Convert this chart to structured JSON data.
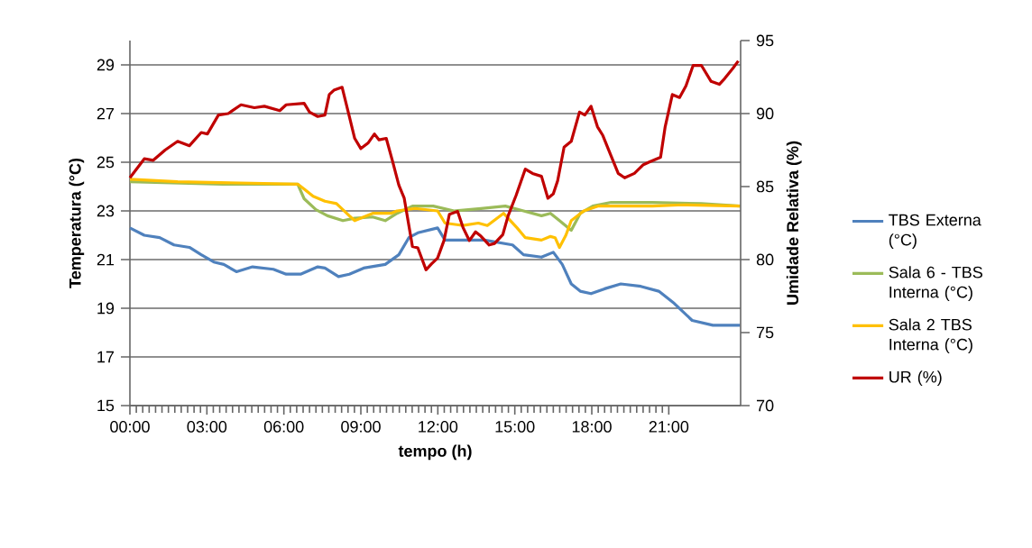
{
  "chart_data": {
    "type": "line",
    "xlabel": "tempo (h)",
    "ylabel": "Temperatura (°C)",
    "y2label": "Umidade Relativa (%)",
    "xlim": [
      0,
      23.8
    ],
    "xticks": [
      {
        "value": 0,
        "label": "00:00"
      },
      {
        "value": 3,
        "label": "03:00"
      },
      {
        "value": 6,
        "label": "06:00"
      },
      {
        "value": 9,
        "label": "09:00"
      },
      {
        "value": 12,
        "label": "12:00"
      },
      {
        "value": 15,
        "label": "15:00"
      },
      {
        "value": 18,
        "label": "18:00"
      },
      {
        "value": 21,
        "label": "21:00"
      }
    ],
    "ylim": [
      15,
      30
    ],
    "yticks": [
      15,
      17,
      19,
      21,
      23,
      25,
      27,
      29
    ],
    "y2lim": [
      70,
      95
    ],
    "y2ticks": [
      70,
      75,
      80,
      85,
      90,
      95
    ],
    "grid": "y",
    "legend": "right",
    "series": [
      {
        "name": "TBS Externa (°C)",
        "color": "#4f81bd",
        "axis": "y",
        "x": [
          0,
          0.56,
          1.16,
          1.72,
          2.32,
          2.78,
          3.27,
          3.66,
          4.15,
          4.78,
          5.59,
          6.09,
          6.65,
          7.32,
          7.6,
          8.13,
          8.55,
          9.11,
          9.95,
          10.48,
          10.87,
          11.22,
          11.99,
          12.28,
          13.33,
          13.82,
          14.91,
          15.34,
          16.04,
          16.5,
          16.85,
          17.2,
          17.55,
          17.97,
          18.5,
          19.13,
          19.91,
          20.61,
          21.21,
          21.91,
          22.72,
          23.78
        ],
        "values": [
          22.3,
          22.0,
          21.9,
          21.6,
          21.5,
          21.2,
          20.9,
          20.8,
          20.5,
          20.7,
          20.6,
          20.4,
          20.4,
          20.7,
          20.65,
          20.3,
          20.4,
          20.65,
          20.8,
          21.2,
          21.9,
          22.1,
          22.3,
          21.8,
          21.8,
          21.8,
          21.6,
          21.2,
          21.1,
          21.3,
          20.8,
          20.0,
          19.7,
          19.6,
          19.8,
          20.0,
          19.9,
          19.7,
          19.2,
          18.5,
          18.3,
          18.3
        ]
      },
      {
        "name": "Sala 6 - TBS Interna (°C)",
        "color": "#9bbb59",
        "axis": "y",
        "x": [
          0,
          3.62,
          6.54,
          6.79,
          7.25,
          7.7,
          8.3,
          8.76,
          9.46,
          9.95,
          10.41,
          11.01,
          11.82,
          12.63,
          13.68,
          14.63,
          15.34,
          16.04,
          16.39,
          16.74,
          17.2,
          17.55,
          18.04,
          18.75,
          20.37,
          22.27,
          23.78
        ],
        "values": [
          24.2,
          24.1,
          24.1,
          23.5,
          23.05,
          22.8,
          22.6,
          22.7,
          22.75,
          22.6,
          22.9,
          23.2,
          23.2,
          23.0,
          23.1,
          23.2,
          23.0,
          22.8,
          22.9,
          22.6,
          22.2,
          22.9,
          23.2,
          23.35,
          23.35,
          23.3,
          23.2
        ]
      },
      {
        "name": "Sala 2 TBS Interna (°C)",
        "color": "#ffc000",
        "axis": "y",
        "x": [
          0,
          1.86,
          6.54,
          6.79,
          7.14,
          7.6,
          8.05,
          8.55,
          8.76,
          9.46,
          10.17,
          10.41,
          11.12,
          11.99,
          12.28,
          12.98,
          13.58,
          13.93,
          14.56,
          15.09,
          15.41,
          16.04,
          16.39,
          16.57,
          16.74,
          16.99,
          17.2,
          17.69,
          18.26,
          20.37,
          21.56,
          23.78
        ],
        "values": [
          24.3,
          24.2,
          24.1,
          23.9,
          23.6,
          23.4,
          23.3,
          22.8,
          22.6,
          22.9,
          22.9,
          23.0,
          23.1,
          23.0,
          22.5,
          22.4,
          22.5,
          22.4,
          22.9,
          22.3,
          21.9,
          21.8,
          21.95,
          21.9,
          21.5,
          22.0,
          22.6,
          23.0,
          23.2,
          23.2,
          23.25,
          23.2
        ]
      },
      {
        "name": "UR (%)",
        "color": "#c00000",
        "axis": "y2",
        "x": [
          0,
          0.56,
          0.91,
          1.37,
          1.86,
          2.32,
          2.78,
          3.02,
          3.45,
          3.83,
          4.33,
          4.85,
          5.24,
          5.84,
          6.09,
          6.79,
          7.0,
          7.32,
          7.6,
          7.77,
          7.95,
          8.27,
          8.55,
          8.76,
          9.0,
          9.29,
          9.53,
          9.71,
          9.99,
          10.24,
          10.48,
          10.69,
          11.01,
          11.22,
          11.54,
          11.75,
          11.99,
          12.24,
          12.45,
          12.77,
          12.98,
          13.23,
          13.47,
          13.68,
          14.0,
          14.21,
          14.53,
          14.74,
          15.05,
          15.41,
          15.69,
          16.04,
          16.29,
          16.5,
          16.67,
          16.92,
          17.2,
          17.52,
          17.73,
          17.97,
          18.22,
          18.43,
          18.75,
          19.03,
          19.28,
          19.66,
          20.01,
          20.26,
          20.68,
          20.86,
          21.14,
          21.42,
          21.67,
          21.95,
          22.27,
          22.65,
          22.97,
          23.18,
          23.5,
          23.71
        ],
        "values": [
          85.6,
          86.9,
          86.8,
          87.5,
          88.1,
          87.8,
          88.7,
          88.6,
          89.9,
          90.0,
          90.6,
          90.4,
          90.5,
          90.2,
          90.6,
          90.7,
          90.1,
          89.8,
          89.9,
          91.3,
          91.6,
          91.8,
          89.8,
          88.3,
          87.6,
          88.0,
          88.6,
          88.2,
          88.3,
          86.7,
          85.1,
          84.2,
          80.9,
          80.8,
          79.3,
          79.7,
          80.1,
          81.3,
          83.1,
          83.3,
          82.2,
          81.3,
          81.9,
          81.6,
          81.0,
          81.1,
          81.7,
          83.0,
          84.4,
          86.2,
          85.9,
          85.7,
          84.2,
          84.5,
          85.4,
          87.7,
          88.1,
          90.1,
          89.9,
          90.5,
          89.1,
          88.5,
          87.1,
          85.9,
          85.6,
          85.9,
          86.5,
          86.7,
          87.0,
          89.1,
          91.3,
          91.1,
          91.9,
          93.3,
          93.3,
          92.2,
          92.0,
          92.4,
          93.1,
          93.6
        ]
      }
    ]
  }
}
